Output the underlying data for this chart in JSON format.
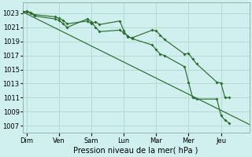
{
  "xlabel": "Pression niveau de la mer( hPa )",
  "bg_color": "#d0f0f0",
  "grid_color": "#b0d8cc",
  "line_color": "#2d6b2d",
  "ylim": [
    1006.0,
    1024.5
  ],
  "xlim": [
    0,
    28
  ],
  "yticks": [
    1007,
    1009,
    1011,
    1013,
    1015,
    1017,
    1019,
    1021,
    1023
  ],
  "day_labels": [
    "Dim",
    "Ven",
    "Sam",
    "Lun",
    "Mar",
    "Mer",
    "Jeu"
  ],
  "day_positions": [
    0.5,
    4.5,
    8.5,
    12.5,
    16.5,
    20.5,
    24.5
  ],
  "series1_x": [
    0.0,
    0.5,
    1.0,
    1.5,
    4.0,
    4.5,
    5.0,
    5.5,
    8.0,
    8.5,
    9.0,
    9.5,
    12.0,
    12.5,
    13.0,
    13.5,
    16.0,
    16.5,
    17.0,
    17.5,
    20.0,
    20.5,
    21.0,
    21.5,
    24.0,
    24.5,
    25.0,
    25.5
  ],
  "series1_y": [
    1023.2,
    1023.3,
    1023.1,
    1022.8,
    1022.5,
    1022.3,
    1022.0,
    1021.5,
    1021.9,
    1021.5,
    1021.8,
    1021.4,
    1021.9,
    1020.5,
    1019.6,
    1019.5,
    1020.6,
    1020.5,
    1019.9,
    1019.3,
    1017.2,
    1017.3,
    1016.5,
    1015.8,
    1013.2,
    1013.1,
    1011.0,
    1011.0
  ],
  "series2_x": [
    0.0,
    0.5,
    1.0,
    1.5,
    4.0,
    4.5,
    5.0,
    5.5,
    8.0,
    8.5,
    9.0,
    9.5,
    12.0,
    12.5,
    13.0,
    13.5,
    16.0,
    16.5,
    17.0,
    17.5,
    20.0,
    20.5,
    21.0,
    21.5,
    24.0,
    24.5,
    25.0,
    25.5
  ],
  "series2_y": [
    1023.2,
    1023.2,
    1023.0,
    1022.6,
    1022.2,
    1022.0,
    1021.5,
    1021.0,
    1022.2,
    1021.8,
    1021.0,
    1020.4,
    1020.6,
    1020.2,
    1019.8,
    1019.4,
    1018.5,
    1017.8,
    1017.2,
    1017.0,
    1015.4,
    1013.2,
    1011.0,
    1010.8,
    1010.8,
    1008.5,
    1007.8,
    1007.4
  ],
  "series3_x": [
    0.0,
    28.0
  ],
  "series3_y": [
    1023.2,
    1007.2
  ]
}
